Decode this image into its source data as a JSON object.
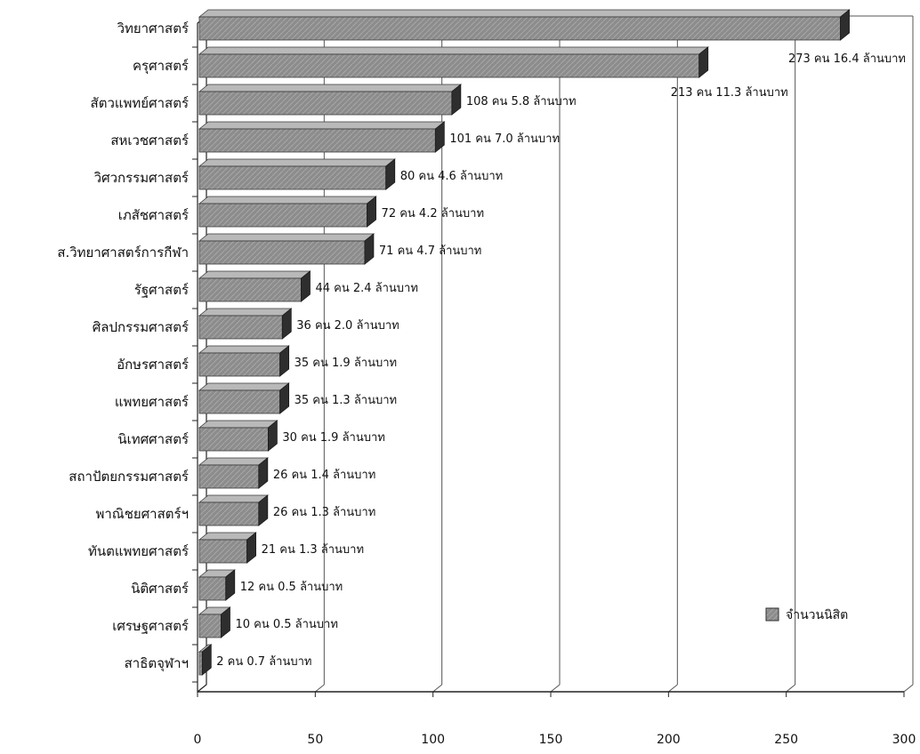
{
  "chart_data": {
    "type": "bar",
    "orientation": "horizontal",
    "style": "3d",
    "categories": [
      "วิทยาศาสตร์",
      "ครุศาสตร์",
      "สัตวแพทย์ศาสตร์",
      "สหเวชศาสตร์",
      "วิศวกรรมศาสตร์",
      "เภสัชศาสตร์",
      "ส.วิทยาศาสตร์การกีฬา",
      "รัฐศาสตร์",
      "ศิลปกรรมศาสตร์",
      "อักษรศาสตร์",
      "แพทยศาสตร์",
      "นิเทศศาสตร์",
      "สถาปัตยกรรมศาสตร์",
      "พาณิชยศาสตร์ฯ",
      "ทันตแพทยศาสตร์",
      "นิติศาสตร์",
      "เศรษฐศาสตร์",
      "สาธิตจุฬาฯ"
    ],
    "series": [
      {
        "name": "จำนวนนิสิต",
        "values": [
          273,
          213,
          108,
          101,
          80,
          72,
          71,
          44,
          36,
          35,
          35,
          30,
          26,
          26,
          21,
          12,
          10,
          2
        ]
      }
    ],
    "data_labels": [
      "273 คน 16.4 ล้านบาท",
      "213 คน 11.3 ล้านบาท",
      "108 คน 5.8 ล้านบาท",
      "101 คน 7.0 ล้านบาท",
      "80 คน 4.6 ล้านบาท",
      "72 คน 4.2 ล้านบาท",
      "71 คน 4.7 ล้านบาท",
      "44 คน 2.4 ล้านบาท",
      "36 คน 2.0 ล้านบาท",
      "35 คน 1.9 ล้านบาท",
      "35 คน 1.3 ล้านบาท",
      "30 คน 1.9 ล้านบาท",
      "26 คน 1.4 ล้านบาท",
      "26 คน 1.3 ล้านบาท",
      "21 คน 1.3 ล้านบาท",
      "12 คน 0.5 ล้านบาท",
      "10 คน 0.5 ล้านบาท",
      "2 คน 0.7 ล้านบาท"
    ],
    "x_ticks": [
      0,
      50,
      100,
      150,
      200,
      250,
      300
    ],
    "xlim": [
      0,
      300
    ],
    "title": "",
    "xlabel": "",
    "ylabel": "",
    "grid": "vertical",
    "legend_position": "right",
    "colors": {
      "bar_front": "#8c8c8c",
      "bar_top": "#b9b9b9",
      "bar_side": "#2e2e2e",
      "grid": "#555555",
      "axis": "#222222"
    }
  }
}
